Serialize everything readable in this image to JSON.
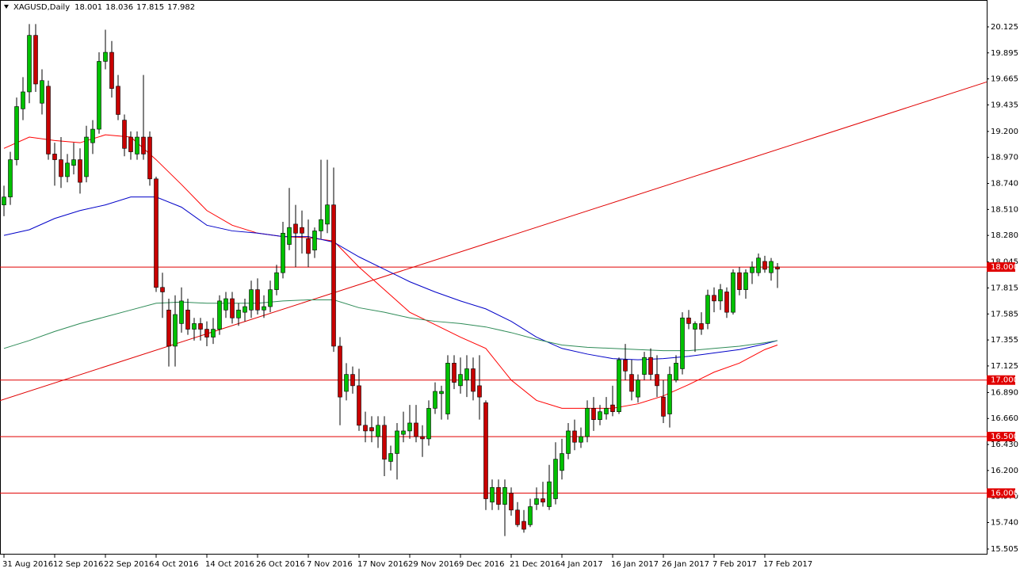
{
  "chart_data": {
    "type": "candlestick",
    "title": "XAGUSD,Daily",
    "up_color": "#00c000",
    "down_color": "#c80000",
    "ylim": [
      15.456,
      20.363
    ],
    "yticks": [
      20.125,
      19.895,
      19.665,
      19.435,
      {
        "value": 19.2,
        "label": "19.200"
      },
      {
        "value": 18.97,
        "label": "18.970"
      },
      {
        "value": 18.74,
        "label": "18.740"
      },
      {
        "value": 18.51,
        "label": "18.510"
      },
      {
        "value": 18.28,
        "label": "18.280"
      },
      18.045,
      17.815,
      17.585,
      17.355,
      17.125,
      {
        "value": 16.89,
        "label": "16.890"
      },
      {
        "value": 16.66,
        "label": "16.660"
      },
      {
        "value": 16.43,
        "label": "16.430"
      },
      {
        "value": 16.2,
        "label": "16.200"
      },
      {
        "value": 15.97,
        "label": "15.970"
      },
      {
        "value": 15.74,
        "label": "15.740"
      },
      15.505
    ],
    "levels": [
      {
        "value": 18,
        "label": "18.000"
      },
      {
        "value": 17,
        "label": "17.000"
      },
      {
        "value": 16.5,
        "label": "16.500"
      },
      {
        "value": 16,
        "label": "16.000"
      }
    ],
    "level_color": "#e00000",
    "categories": [
      "31 Aug 2016",
      null,
      null,
      null,
      null,
      null,
      null,
      null,
      "12 Sep 2016",
      null,
      null,
      null,
      null,
      null,
      null,
      null,
      "22 Sep 2016",
      null,
      null,
      null,
      null,
      null,
      null,
      null,
      "4 Oct 2016",
      null,
      null,
      null,
      null,
      null,
      null,
      null,
      "14 Oct 2016",
      null,
      null,
      null,
      null,
      null,
      null,
      null,
      "26 Oct 2016",
      null,
      null,
      null,
      null,
      null,
      null,
      null,
      "7 Nov 2016",
      null,
      null,
      null,
      null,
      null,
      null,
      null,
      "17 Nov 2016",
      null,
      null,
      null,
      null,
      null,
      null,
      null,
      "29 Nov 2016",
      null,
      null,
      null,
      null,
      null,
      null,
      null,
      "9 Dec 2016",
      null,
      null,
      null,
      null,
      null,
      null,
      null,
      "21 Dec 2016",
      null,
      null,
      null,
      null,
      null,
      null,
      null,
      "4 Jan 2017",
      null,
      null,
      null,
      null,
      null,
      null,
      null,
      "16 Jan 2017",
      null,
      null,
      null,
      null,
      null,
      null,
      null,
      "26 Jan 2017",
      null,
      null,
      null,
      null,
      null,
      null,
      null,
      "7 Feb 2017",
      null,
      null,
      null,
      null,
      null,
      null,
      null,
      "17 Feb 2017",
      null,
      null
    ],
    "ohlc": [
      [
        18.55,
        18.72,
        18.45,
        18.62
      ],
      [
        18.62,
        19.02,
        18.55,
        18.95
      ],
      [
        18.95,
        19.5,
        18.9,
        19.42
      ],
      [
        19.4,
        19.68,
        19.3,
        19.55
      ],
      [
        19.55,
        20.15,
        19.45,
        20.05
      ],
      [
        20.05,
        20.15,
        19.55,
        19.62
      ],
      [
        19.45,
        19.75,
        19.35,
        19.65
      ],
      [
        19.6,
        19.65,
        18.95,
        19.0
      ],
      [
        19.0,
        19.1,
        18.72,
        18.95
      ],
      [
        18.95,
        19.15,
        18.7,
        18.8
      ],
      [
        18.8,
        19.0,
        18.75,
        18.92
      ],
      [
        18.9,
        19.1,
        18.82,
        18.95
      ],
      [
        18.95,
        19.05,
        18.65,
        18.75
      ],
      [
        18.8,
        19.25,
        18.75,
        19.15
      ],
      [
        19.1,
        19.3,
        19.0,
        19.22
      ],
      [
        19.22,
        19.9,
        19.18,
        19.82
      ],
      [
        19.82,
        20.1,
        19.75,
        19.9
      ],
      [
        19.9,
        20.0,
        19.5,
        19.58
      ],
      [
        19.6,
        19.7,
        19.3,
        19.35
      ],
      [
        19.3,
        19.35,
        18.98,
        19.05
      ],
      [
        19.15,
        19.2,
        18.95,
        19.02
      ],
      [
        19.0,
        19.2,
        18.95,
        19.15
      ],
      [
        19.15,
        19.7,
        18.95,
        19.0
      ],
      [
        19.15,
        19.2,
        18.72,
        18.78
      ],
      [
        18.78,
        18.8,
        17.78,
        17.82
      ],
      [
        17.82,
        17.95,
        17.55,
        17.78
      ],
      [
        17.62,
        17.72,
        17.12,
        17.3
      ],
      [
        17.3,
        17.75,
        17.12,
        17.58
      ],
      [
        17.5,
        17.82,
        17.42,
        17.7
      ],
      [
        17.62,
        17.72,
        17.4,
        17.45
      ],
      [
        17.45,
        17.55,
        17.35,
        17.5
      ],
      [
        17.5,
        17.55,
        17.35,
        17.45
      ],
      [
        17.45,
        17.52,
        17.3,
        17.38
      ],
      [
        17.38,
        17.55,
        17.32,
        17.45
      ],
      [
        17.45,
        17.75,
        17.4,
        17.7
      ],
      [
        17.62,
        17.78,
        17.55,
        17.72
      ],
      [
        17.72,
        17.78,
        17.5,
        17.55
      ],
      [
        17.55,
        17.68,
        17.48,
        17.62
      ],
      [
        17.6,
        17.72,
        17.52,
        17.65
      ],
      [
        17.62,
        17.88,
        17.55,
        17.8
      ],
      [
        17.8,
        17.9,
        17.58,
        17.62
      ],
      [
        17.62,
        17.75,
        17.55,
        17.65
      ],
      [
        17.65,
        17.88,
        17.6,
        17.8
      ],
      [
        17.8,
        18.02,
        17.75,
        17.95
      ],
      [
        17.95,
        18.4,
        17.9,
        18.3
      ],
      [
        18.2,
        18.7,
        18.15,
        18.35
      ],
      [
        18.38,
        18.55,
        18.0,
        18.3
      ],
      [
        18.35,
        18.5,
        18.12,
        18.3
      ],
      [
        18.25,
        18.42,
        18.0,
        18.12
      ],
      [
        18.15,
        18.35,
        18.08,
        18.32
      ],
      [
        18.32,
        18.95,
        18.25,
        18.42
      ],
      [
        18.38,
        18.95,
        18.3,
        18.55
      ],
      [
        18.55,
        18.88,
        17.25,
        17.3
      ],
      [
        17.3,
        17.38,
        16.6,
        16.85
      ],
      [
        16.9,
        17.15,
        16.82,
        17.05
      ],
      [
        17.05,
        17.12,
        16.88,
        16.95
      ],
      [
        16.95,
        17.1,
        16.55,
        16.6
      ],
      [
        16.6,
        16.72,
        16.45,
        16.55
      ],
      [
        16.58,
        16.68,
        16.45,
        16.55
      ],
      [
        16.5,
        16.68,
        16.4,
        16.6
      ],
      [
        16.6,
        16.68,
        16.15,
        16.3
      ],
      [
        16.28,
        16.42,
        16.2,
        16.35
      ],
      [
        16.35,
        16.62,
        16.12,
        16.55
      ],
      [
        16.52,
        16.72,
        16.45,
        16.55
      ],
      [
        16.55,
        16.78,
        16.48,
        16.62
      ],
      [
        16.62,
        16.78,
        16.45,
        16.5
      ],
      [
        16.5,
        16.6,
        16.32,
        16.48
      ],
      [
        16.48,
        16.82,
        16.42,
        16.75
      ],
      [
        16.75,
        16.98,
        16.7,
        16.9
      ],
      [
        16.88,
        16.95,
        16.65,
        16.9
      ],
      [
        16.7,
        17.22,
        16.65,
        17.15
      ],
      [
        17.15,
        17.22,
        16.92,
        16.98
      ],
      [
        16.95,
        17.2,
        16.88,
        17.05
      ],
      [
        17.0,
        17.22,
        16.85,
        17.1
      ],
      [
        17.1,
        17.2,
        16.82,
        16.9
      ],
      [
        16.95,
        17.22,
        16.65,
        16.85
      ],
      [
        16.8,
        16.82,
        15.85,
        15.95
      ],
      [
        15.92,
        16.12,
        15.85,
        16.05
      ],
      [
        16.05,
        16.12,
        15.85,
        15.9
      ],
      [
        15.9,
        16.12,
        15.62,
        16.05
      ],
      [
        16.0,
        16.05,
        15.8,
        15.85
      ],
      [
        15.85,
        15.92,
        15.7,
        15.72
      ],
      [
        15.75,
        15.85,
        15.65,
        15.68
      ],
      [
        15.72,
        15.95,
        15.7,
        15.88
      ],
      [
        15.9,
        16.05,
        15.85,
        15.95
      ],
      [
        15.95,
        16.1,
        15.88,
        15.92
      ],
      [
        15.88,
        16.25,
        15.85,
        16.1
      ],
      [
        15.95,
        16.45,
        15.9,
        16.3
      ],
      [
        16.2,
        16.48,
        16.12,
        16.35
      ],
      [
        16.35,
        16.62,
        16.3,
        16.55
      ],
      [
        16.55,
        16.65,
        16.38,
        16.45
      ],
      [
        16.45,
        16.58,
        16.4,
        16.5
      ],
      [
        16.5,
        16.82,
        16.45,
        16.75
      ],
      [
        16.75,
        16.85,
        16.55,
        16.65
      ],
      [
        16.65,
        16.78,
        16.6,
        16.72
      ],
      [
        16.7,
        16.85,
        16.65,
        16.75
      ],
      [
        16.78,
        16.95,
        16.68,
        16.72
      ],
      [
        16.72,
        17.2,
        16.7,
        17.18
      ],
      [
        17.18,
        17.32,
        17.0,
        17.08
      ],
      [
        17.05,
        17.18,
        16.82,
        16.9
      ],
      [
        16.85,
        17.05,
        16.8,
        17.0
      ],
      [
        17.05,
        17.25,
        17.0,
        17.2
      ],
      [
        17.2,
        17.28,
        17.0,
        17.05
      ],
      [
        17.05,
        17.22,
        16.85,
        16.95
      ],
      [
        16.85,
        17.0,
        16.62,
        16.68
      ],
      [
        16.7,
        17.12,
        16.58,
        17.05
      ],
      [
        17.0,
        17.22,
        16.98,
        17.15
      ],
      [
        17.1,
        17.6,
        17.05,
        17.55
      ],
      [
        17.55,
        17.62,
        17.45,
        17.5
      ],
      [
        17.45,
        17.52,
        17.25,
        17.5
      ],
      [
        17.5,
        17.6,
        17.4,
        17.45
      ],
      [
        17.5,
        17.8,
        17.45,
        17.75
      ],
      [
        17.75,
        17.82,
        17.6,
        17.7
      ],
      [
        17.7,
        17.85,
        17.62,
        17.8
      ],
      [
        17.78,
        17.82,
        17.55,
        17.6
      ],
      [
        17.6,
        17.98,
        17.58,
        17.95
      ],
      [
        17.95,
        18.0,
        17.75,
        17.8
      ],
      [
        17.8,
        17.98,
        17.72,
        17.95
      ],
      [
        17.95,
        18.05,
        17.85,
        18.0
      ],
      [
        17.95,
        18.12,
        17.92,
        18.08
      ],
      [
        18.05,
        18.1,
        17.95,
        17.98
      ],
      [
        17.95,
        18.08,
        17.88,
        18.05
      ],
      [
        18.001,
        18.036,
        17.815,
        17.982
      ]
    ],
    "series": [
      {
        "color": "#ff0000",
        "x": [
          0,
          4,
          8,
          12,
          16,
          20,
          24,
          28,
          32,
          36,
          40,
          44,
          48,
          52,
          56,
          60,
          64,
          68,
          72,
          76,
          80,
          84,
          88,
          92,
          96,
          100,
          104,
          108,
          112,
          116,
          120,
          122
        ],
        "values": [
          19.05,
          19.15,
          19.12,
          19.1,
          19.17,
          19.15,
          18.95,
          18.73,
          18.5,
          18.37,
          18.3,
          18.27,
          18.26,
          18.23,
          18.0,
          17.8,
          17.6,
          17.49,
          17.38,
          17.28,
          17.0,
          16.82,
          16.75,
          16.75,
          16.75,
          16.79,
          16.86,
          16.96,
          17.07,
          17.15,
          17.27,
          17.31
        ]
      },
      {
        "color": "#0000c8",
        "x": [
          0,
          4,
          8,
          12,
          16,
          20,
          24,
          28,
          32,
          36,
          40,
          44,
          48,
          52,
          56,
          60,
          64,
          68,
          72,
          76,
          80,
          84,
          88,
          92,
          96,
          100,
          104,
          108,
          112,
          116,
          120,
          122
        ],
        "values": [
          18.28,
          18.33,
          18.43,
          18.5,
          18.55,
          18.62,
          18.62,
          18.53,
          18.37,
          18.32,
          18.3,
          18.27,
          18.27,
          18.22,
          18.09,
          17.98,
          17.87,
          17.78,
          17.7,
          17.63,
          17.52,
          17.38,
          17.28,
          17.23,
          17.19,
          17.18,
          17.19,
          17.21,
          17.24,
          17.27,
          17.32,
          17.35
        ]
      },
      {
        "color": "#2e8b57",
        "x": [
          0,
          4,
          8,
          12,
          16,
          20,
          24,
          28,
          32,
          36,
          40,
          44,
          48,
          52,
          56,
          60,
          64,
          68,
          72,
          76,
          80,
          84,
          88,
          92,
          96,
          100,
          104,
          108,
          112,
          116,
          120,
          122
        ],
        "values": [
          17.28,
          17.35,
          17.43,
          17.5,
          17.56,
          17.62,
          17.68,
          17.69,
          17.68,
          17.68,
          17.68,
          17.7,
          17.71,
          17.71,
          17.64,
          17.6,
          17.55,
          17.52,
          17.5,
          17.47,
          17.42,
          17.36,
          17.31,
          17.29,
          17.28,
          17.27,
          17.26,
          17.26,
          17.28,
          17.3,
          17.33,
          17.35
        ]
      }
    ],
    "trendline": {
      "color": "#e00000",
      "x": [
        0,
        122
      ],
      "values": [
        16.83,
        19.04
      ]
    }
  }
}
